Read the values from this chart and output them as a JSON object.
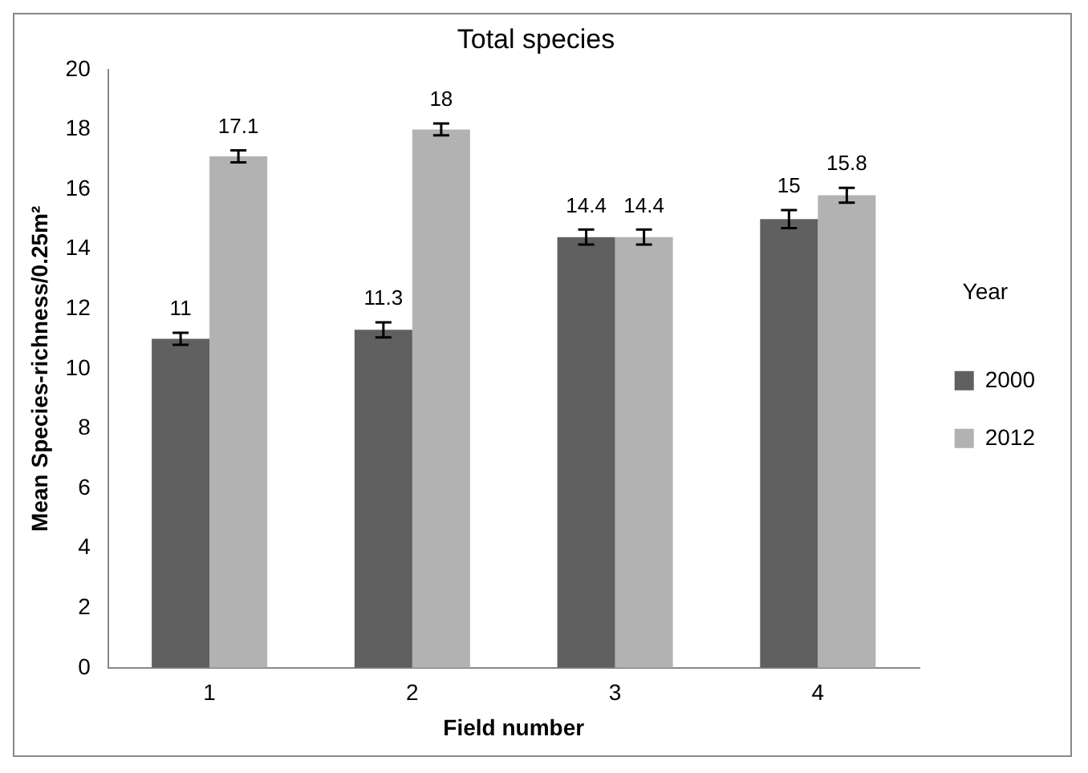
{
  "chart_data": {
    "type": "bar",
    "title": "Total species",
    "xlabel": "Field number",
    "ylabel": "Mean Species-richness/0.25m²",
    "legend_title": "Year",
    "categories": [
      "1",
      "2",
      "3",
      "4"
    ],
    "series": [
      {
        "name": "2000",
        "color": "#606060",
        "values": [
          11,
          11.3,
          14.4,
          15
        ],
        "errors": [
          0.2,
          0.25,
          0.25,
          0.3
        ]
      },
      {
        "name": "2012",
        "color": "#b2b2b2",
        "values": [
          17.1,
          18,
          14.4,
          15.8
        ],
        "errors": [
          0.2,
          0.2,
          0.25,
          0.25
        ]
      }
    ],
    "ylim": [
      0,
      20
    ],
    "yticks": [
      0,
      2,
      4,
      6,
      8,
      10,
      12,
      14,
      16,
      18,
      20
    ],
    "grid": false,
    "legend": "right",
    "data_labels": true
  }
}
